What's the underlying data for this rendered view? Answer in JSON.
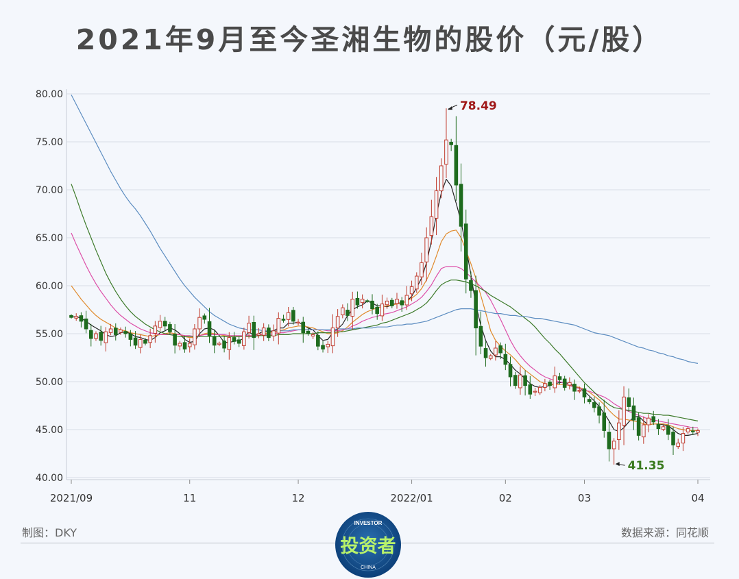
{
  "title": "2021年9月至今圣湘生物的股价（元/股）",
  "footer": {
    "maker": "制图：DKY",
    "source": "数据来源：同花顺"
  },
  "logo": {
    "top_text": "INVESTOR",
    "main_text": "投资者",
    "bottom_text": "CHINA"
  },
  "colors": {
    "up": "#c0392b",
    "down": "#1e6b1e",
    "ma5": "#222222",
    "ma10": "#e08a2c",
    "ma20": "#dd4fa8",
    "ma30": "#3c7a2a",
    "ma60": "#5b8cc0",
    "grid": "#d9dee6",
    "max_label": "#a01818",
    "min_label": "#3a7a1e"
  },
  "chart_data": {
    "type": "candlestick",
    "title": "2021年9月至今圣湘生物的股价（元/股）",
    "ylim": [
      40,
      80
    ],
    "yticks": [
      "40.00",
      "45.00",
      "50.00",
      "55.00",
      "60.00",
      "65.00",
      "70.00",
      "75.00",
      "80.00"
    ],
    "xticks": [
      {
        "label": "2021/09",
        "index": 0
      },
      {
        "label": "11",
        "index": 24
      },
      {
        "label": "12",
        "index": 46
      },
      {
        "label": "2022/01",
        "index": 69
      },
      {
        "label": "02",
        "index": 88
      },
      {
        "label": "03",
        "index": 104
      },
      {
        "label": "04",
        "index": 127
      }
    ],
    "annotations": [
      {
        "text": "78.49",
        "value": 78.49,
        "index": 76,
        "kind": "max"
      },
      {
        "text": "41.35",
        "value": 41.35,
        "index": 110,
        "kind": "min"
      }
    ],
    "closes": [
      56.7,
      56.8,
      56.3,
      55.5,
      54.5,
      55.0,
      54.3,
      55.2,
      55.5,
      54.9,
      55.4,
      55.0,
      54.4,
      53.8,
      54.4,
      54.0,
      54.8,
      55.8,
      56.3,
      55.8,
      55.2,
      53.8,
      54.0,
      53.4,
      54.0,
      55.5,
      56.7,
      56.5,
      54.8,
      53.8,
      54.0,
      53.5,
      54.6,
      54.2,
      54.0,
      55.2,
      56.1,
      54.6,
      55.0,
      55.6,
      54.6,
      55.3,
      56.6,
      56.4,
      57.2,
      56.3,
      56.2,
      55.1,
      55.0,
      54.9,
      53.7,
      53.4,
      53.9,
      55.6,
      56.8,
      57.7,
      56.9,
      58.6,
      58.0,
      58.6,
      58.4,
      57.6,
      57.1,
      58.1,
      58.4,
      57.9,
      58.6,
      58.0,
      59.0,
      59.9,
      61.0,
      62.4,
      65.0,
      67.2,
      69.9,
      72.5,
      75.2,
      74.7,
      70.5,
      66.2,
      60.7,
      59.5,
      55.6,
      53.7,
      52.5,
      52.7,
      53.5,
      53.0,
      51.8,
      50.5,
      49.6,
      50.7,
      49.6,
      48.7,
      49.0,
      49.4,
      49.8,
      49.6,
      50.6,
      50.2,
      49.4,
      49.9,
      49.0,
      49.1,
      48.4,
      47.9,
      47.3,
      46.5,
      44.9,
      43.0,
      43.8,
      45.7,
      48.4,
      47.4,
      46.0,
      44.4,
      45.5,
      46.2,
      45.8,
      45.1,
      45.3,
      44.5,
      43.4,
      43.6,
      44.6,
      45.1,
      44.8,
      44.9
    ],
    "series": [
      {
        "name": "MA5",
        "color": "#222222",
        "values": [
          56.7,
          56.8,
          56.6,
          56.3,
          55.9,
          55.6,
          55.3,
          54.9,
          54.7,
          54.8,
          55.1,
          55.2,
          55.0,
          54.7,
          54.6,
          54.4,
          54.3,
          54.6,
          55.1,
          55.3,
          55.6,
          55.4,
          55.0,
          54.4,
          54.1,
          54.2,
          55.0,
          55.5,
          55.6,
          55.4,
          54.8,
          54.1,
          54.1,
          54.2,
          54.3,
          54.5,
          55.2,
          54.8,
          55.0,
          55.3,
          55.2,
          55.3,
          55.6,
          55.6,
          56.1,
          56.1,
          56.2,
          55.9,
          55.6,
          55.4,
          54.8,
          54.3,
          54.4,
          55.1,
          55.5,
          56.0,
          56.9,
          57.5,
          57.8,
          58.0,
          58.4,
          58.2,
          57.9,
          57.9,
          57.8,
          58.0,
          58.2,
          58.2,
          58.4,
          58.9,
          59.8,
          60.8,
          62.4,
          64.7,
          67.4,
          69.7,
          71.1,
          70.4,
          68.6,
          66.7,
          64.0,
          61.2,
          58.0,
          55.9,
          54.3,
          53.2,
          52.6,
          52.6,
          52.3,
          51.8,
          51.2,
          50.8,
          50.3,
          49.8,
          49.5,
          49.4,
          49.5,
          49.6,
          49.8,
          49.9,
          49.9,
          49.8,
          49.5,
          49.3,
          49.0,
          48.5,
          48.0,
          47.4,
          46.7,
          45.9,
          45.0,
          44.8,
          45.2,
          45.8,
          46.3,
          46.4,
          45.9,
          45.5,
          45.6,
          45.6,
          45.5,
          45.4,
          45.0,
          44.6,
          44.4,
          44.4,
          44.5,
          44.6
        ]
      },
      {
        "name": "MA10",
        "color": "#e08a2c",
        "values": [
          60.0,
          59.3,
          58.6,
          58.0,
          57.4,
          56.9,
          56.5,
          56.2,
          55.9,
          55.6,
          55.4,
          55.3,
          55.1,
          55.0,
          54.9,
          54.8,
          54.7,
          54.8,
          54.9,
          55.0,
          55.1,
          55.0,
          54.9,
          54.7,
          54.6,
          54.6,
          54.8,
          55.0,
          55.1,
          55.0,
          54.9,
          54.8,
          54.7,
          54.7,
          54.7,
          54.7,
          54.8,
          54.8,
          54.9,
          55.0,
          55.1,
          55.2,
          55.3,
          55.4,
          55.6,
          55.7,
          55.8,
          55.8,
          55.7,
          55.6,
          55.4,
          55.2,
          55.0,
          55.0,
          55.1,
          55.3,
          55.7,
          56.2,
          56.6,
          57.0,
          57.3,
          57.5,
          57.7,
          57.8,
          57.9,
          58.0,
          58.1,
          58.2,
          58.4,
          58.7,
          59.1,
          59.7,
          60.6,
          61.7,
          63.1,
          64.6,
          65.4,
          65.7,
          65.8,
          65.0,
          63.7,
          62.3,
          60.8,
          59.0,
          57.2,
          55.3,
          54.3,
          53.7,
          53.2,
          52.8,
          52.3,
          51.7,
          51.2,
          50.8,
          50.4,
          50.0,
          49.8,
          49.7,
          49.7,
          49.7,
          49.7,
          49.6,
          49.5,
          49.4,
          49.2,
          48.9,
          48.5,
          48.1,
          47.6,
          47.0,
          46.5,
          46.1,
          46.1,
          46.0,
          45.9,
          45.8,
          45.6,
          45.5,
          45.6,
          45.6,
          45.6,
          45.5,
          45.3,
          45.1,
          45.0,
          44.9,
          44.9,
          44.9
        ]
      },
      {
        "name": "MA20",
        "color": "#dd4fa8",
        "values": [
          65.5,
          64.3,
          63.2,
          62.1,
          61.1,
          60.2,
          59.4,
          58.7,
          58.0,
          57.4,
          56.9,
          56.5,
          56.1,
          55.8,
          55.5,
          55.3,
          55.1,
          55.0,
          54.9,
          54.9,
          54.9,
          54.9,
          54.9,
          54.8,
          54.8,
          54.7,
          54.8,
          54.9,
          54.9,
          54.9,
          54.9,
          54.9,
          54.8,
          54.8,
          54.8,
          54.8,
          54.8,
          54.8,
          54.9,
          54.9,
          54.9,
          55.0,
          55.1,
          55.1,
          55.2,
          55.3,
          55.4,
          55.4,
          55.4,
          55.4,
          55.4,
          55.4,
          55.3,
          55.3,
          55.3,
          55.4,
          55.5,
          55.8,
          56.0,
          56.3,
          56.5,
          56.7,
          56.8,
          57.0,
          57.1,
          57.2,
          57.4,
          57.6,
          57.8,
          58.1,
          58.4,
          58.8,
          59.4,
          60.1,
          61.0,
          61.8,
          62.0,
          62.0,
          62.0,
          61.8,
          61.4,
          60.9,
          60.4,
          59.9,
          59.3,
          58.5,
          57.5,
          56.5,
          55.4,
          54.3,
          53.4,
          52.7,
          52.1,
          51.6,
          51.2,
          50.8,
          50.5,
          50.3,
          50.1,
          50.0,
          49.8,
          49.6,
          49.4,
          49.3,
          49.1,
          49.0,
          48.8,
          48.6,
          48.4,
          48.1,
          47.7,
          47.4,
          47.1,
          46.9,
          46.7,
          46.5,
          46.3,
          46.1,
          46.0,
          45.9,
          45.8,
          45.7,
          45.6,
          45.5,
          45.4,
          45.3,
          45.2,
          45.2
        ]
      },
      {
        "name": "MA30",
        "color": "#3c7a2a",
        "values": [
          70.6,
          69.2,
          67.7,
          66.3,
          65.0,
          63.7,
          62.5,
          61.3,
          60.3,
          59.4,
          58.6,
          57.9,
          57.3,
          56.8,
          56.4,
          56.0,
          55.7,
          55.4,
          55.2,
          55.0,
          54.9,
          54.8,
          54.7,
          54.7,
          54.7,
          54.7,
          54.7,
          54.7,
          54.7,
          54.7,
          54.7,
          54.7,
          54.7,
          54.7,
          54.7,
          54.7,
          54.7,
          54.7,
          54.8,
          54.8,
          54.8,
          54.8,
          54.9,
          54.9,
          54.9,
          55.0,
          55.0,
          55.0,
          55.0,
          55.0,
          55.1,
          55.1,
          55.1,
          55.1,
          55.2,
          55.2,
          55.3,
          55.4,
          55.5,
          55.6,
          55.7,
          55.8,
          55.9,
          56.1,
          56.2,
          56.4,
          56.6,
          56.8,
          57.0,
          57.2,
          57.5,
          57.8,
          58.2,
          58.8,
          59.5,
          60.1,
          60.4,
          60.6,
          60.6,
          60.5,
          60.4,
          60.2,
          60.0,
          59.7,
          59.4,
          59.0,
          58.7,
          58.4,
          58.1,
          57.8,
          57.4,
          57.0,
          56.6,
          56.2,
          55.7,
          55.1,
          54.5,
          54.0,
          53.4,
          52.9,
          52.3,
          51.7,
          51.1,
          50.5,
          49.9,
          49.4,
          48.9,
          48.4,
          48.0,
          47.6,
          47.3,
          47.2,
          47.1,
          47.0,
          46.9,
          46.8,
          46.7,
          46.7,
          46.6,
          46.6,
          46.5,
          46.5,
          46.4,
          46.3,
          46.2,
          46.1,
          46.0,
          45.9
        ]
      },
      {
        "name": "MA60",
        "color": "#5b8cc0",
        "values": [
          79.9,
          78.9,
          77.9,
          76.9,
          75.9,
          74.9,
          73.9,
          72.9,
          71.9,
          71.0,
          70.1,
          69.3,
          68.6,
          68.0,
          67.3,
          66.5,
          65.7,
          64.8,
          63.9,
          63.1,
          62.3,
          61.5,
          60.7,
          60.0,
          59.4,
          58.8,
          58.3,
          57.8,
          57.3,
          56.9,
          56.6,
          56.3,
          56.0,
          55.8,
          55.6,
          55.5,
          55.4,
          55.4,
          55.4,
          55.3,
          55.3,
          55.3,
          55.3,
          55.3,
          55.3,
          55.4,
          55.4,
          55.4,
          55.4,
          55.4,
          55.4,
          55.4,
          55.4,
          55.4,
          55.5,
          55.5,
          55.5,
          55.5,
          55.6,
          55.6,
          55.6,
          55.6,
          55.7,
          55.7,
          55.7,
          55.8,
          55.9,
          55.9,
          56.0,
          56.0,
          56.1,
          56.2,
          56.3,
          56.5,
          56.7,
          56.9,
          57.1,
          57.3,
          57.5,
          57.6,
          57.6,
          57.6,
          57.5,
          57.4,
          57.3,
          57.2,
          57.1,
          57.1,
          57.0,
          56.9,
          56.9,
          56.8,
          56.8,
          56.7,
          56.6,
          56.6,
          56.5,
          56.4,
          56.3,
          56.2,
          56.1,
          56.0,
          55.9,
          55.7,
          55.5,
          55.3,
          55.1,
          55.0,
          54.9,
          54.8,
          54.6,
          54.4,
          54.2,
          54.0,
          53.8,
          53.6,
          53.5,
          53.3,
          53.2,
          53.0,
          52.9,
          52.7,
          52.6,
          52.4,
          52.3,
          52.1,
          52.0,
          51.9
        ]
      }
    ]
  }
}
